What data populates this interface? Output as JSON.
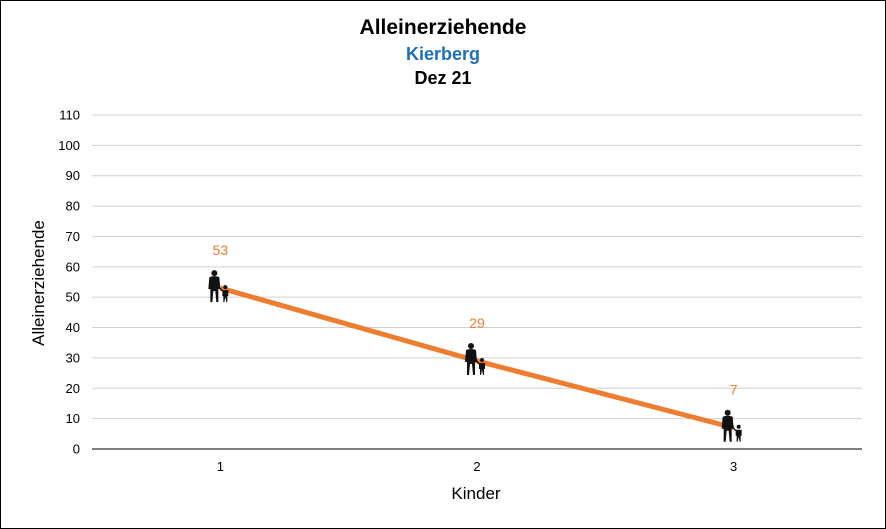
{
  "chart_data": {
    "type": "line",
    "title": "Alleinerziehende",
    "subtitle": "Kierberg",
    "subtitle2": "Dez 21",
    "xlabel": "Kinder",
    "ylabel": "Alleinerziehende",
    "categories": [
      "1",
      "2",
      "3"
    ],
    "values": [
      53,
      29,
      7
    ],
    "data_labels": [
      "53",
      "29",
      "7"
    ],
    "ylim": [
      0,
      110
    ],
    "yticks": [
      0,
      10,
      20,
      30,
      40,
      50,
      60,
      70,
      80,
      90,
      100,
      110
    ],
    "grid": true,
    "line_color": "#ed7d31",
    "marker_icon": "single-parent-with-child-icon"
  }
}
